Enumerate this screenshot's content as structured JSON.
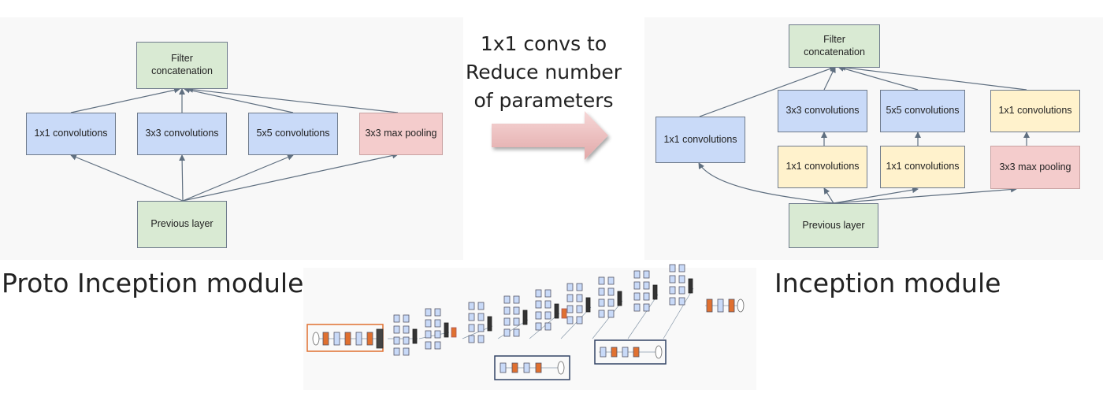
{
  "left": {
    "title": "Proto Inception module",
    "boxes": {
      "concat": "Filter\nconcatenation",
      "conv1": "1x1 convolutions",
      "conv3": "3x3 convolutions",
      "conv5": "5x5 convolutions",
      "pool": "3x3 max pooling",
      "prev": "Previous layer"
    }
  },
  "middle": {
    "caption": "1x1 convs to\nReduce number\nof parameters",
    "arrow": "right-arrow-icon"
  },
  "right": {
    "title": "Inception module",
    "boxes": {
      "concat": "Filter\nconcatenation",
      "conv1": "1x1 convolutions",
      "conv3": "3x3 convolutions",
      "conv5": "5x5 convolutions",
      "conv1_pool": "1x1 convolutions",
      "reduce3": "1x1 convolutions",
      "reduce5": "1x1 convolutions",
      "pool": "3x3 max pooling",
      "prev": "Previous layer"
    }
  },
  "colors": {
    "green": "#d9ead3",
    "blue": "#c9daf8",
    "yellow": "#fff2cc",
    "red": "#f4cccc",
    "orange": "#e07030",
    "line": "#5f6f80"
  }
}
